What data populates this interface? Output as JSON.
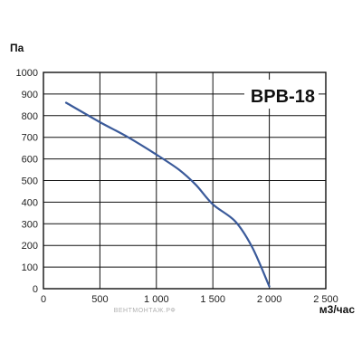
{
  "chart_data": {
    "type": "line",
    "title": "",
    "model_label": "ВРВ-18",
    "ylabel": "Па",
    "xlabel": "м3/час",
    "xlim": [
      0,
      2500
    ],
    "ylim": [
      0,
      1000
    ],
    "x_ticks": [
      0,
      500,
      1000,
      1500,
      2000,
      2500
    ],
    "x_tick_labels": [
      "0",
      "500",
      "1 000",
      "1 500",
      "2 000",
      "2 500"
    ],
    "y_ticks": [
      0,
      100,
      200,
      300,
      400,
      500,
      600,
      700,
      800,
      900,
      1000
    ],
    "y_tick_labels": [
      "0",
      "100",
      "200",
      "300",
      "400",
      "500",
      "600",
      "700",
      "800",
      "900",
      "1000"
    ],
    "grid": true,
    "series": [
      {
        "color": "#3a5a9a",
        "x": [
          200,
          500,
          750,
          1000,
          1200,
          1350,
          1500,
          1700,
          1850,
          2000
        ],
        "y": [
          860,
          770,
          700,
          620,
          550,
          480,
          390,
          310,
          190,
          10
        ]
      }
    ],
    "watermark": "ВЕНТМОНТАЖ.РФ"
  }
}
